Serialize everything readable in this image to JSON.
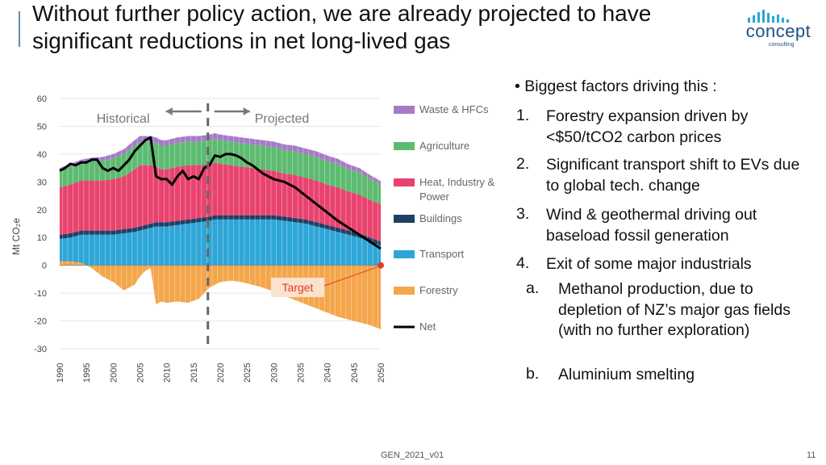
{
  "slide": {
    "title": "Without further policy action, we are already projected to have significant reductions in net long-lived gas",
    "footer": "GEN_2021_v01",
    "page_number": "11"
  },
  "logo": {
    "word": "concept",
    "sub": "consulting",
    "color": "#1e4f86"
  },
  "bullets": {
    "lead": "• Biggest factors driving this :",
    "items": [
      {
        "num": "1.",
        "text": "Forestry expansion driven by <$50/tCO2 carbon prices"
      },
      {
        "num": "2.",
        "text": "Significant transport shift to EVs due to global tech. change"
      },
      {
        "num": "3.",
        "text": "Wind & geothermal driving out baseload fossil generation"
      },
      {
        "num": "4.",
        "text": "Exit of some major industrials"
      }
    ],
    "subitems": [
      {
        "num": "a.",
        "text": "Methanol production, due to depletion of NZ’s major gas fields (with no further exploration)"
      },
      {
        "num": "b.",
        "text": "Aluminium smelting"
      }
    ]
  },
  "chart_data": {
    "type": "area",
    "ylabel": "Mt CO₂e",
    "ylim": [
      -30,
      60
    ],
    "yticks": [
      60,
      50,
      40,
      30,
      20,
      10,
      0,
      -10,
      -20,
      -30
    ],
    "xlim": [
      1990,
      2050
    ],
    "xticks": [
      "1990",
      "1995",
      "2000",
      "2005",
      "2010",
      "2015",
      "2020",
      "2025",
      "2030",
      "2035",
      "2040",
      "2045",
      "2050"
    ],
    "historical_label": "Historical",
    "projected_label": "Projected",
    "divider_year": 2018,
    "annotation": {
      "text": "Target",
      "x": 2050,
      "y": 0
    },
    "x": [
      1990,
      1992,
      1994,
      1996,
      1998,
      2000,
      2002,
      2004,
      2005,
      2006,
      2007,
      2008,
      2009,
      2010,
      2012,
      2014,
      2016,
      2018,
      2019,
      2020,
      2022,
      2024,
      2026,
      2028,
      2030,
      2032,
      2034,
      2036,
      2038,
      2040,
      2042,
      2044,
      2046,
      2048,
      2050
    ],
    "series": [
      {
        "name": "Transport",
        "color": "#2ea6d8",
        "values": [
          9.5,
          10,
          11,
          11,
          11,
          11,
          11.5,
          12,
          12.5,
          13,
          13.5,
          14,
          14,
          14,
          14.5,
          15,
          15.5,
          16,
          16.5,
          16.5,
          16.5,
          16.5,
          16.5,
          16.5,
          16.5,
          16,
          15.5,
          15,
          14,
          13,
          12,
          11,
          10,
          8.5,
          7
        ]
      },
      {
        "name": "Buildings",
        "color": "#1f3f66",
        "values": [
          1.5,
          1.5,
          1.5,
          1.5,
          1.5,
          1.5,
          1.5,
          1.5,
          1.5,
          1.5,
          1.5,
          1.5,
          1.5,
          1.5,
          1.5,
          1.5,
          1.5,
          1.5,
          1.5,
          1.5,
          1.5,
          1.5,
          1.5,
          1.5,
          1.5,
          1.5,
          1.5,
          1.5,
          1.5,
          1.5,
          1.5,
          1.5,
          1.5,
          1.5,
          1.5
        ]
      },
      {
        "name": "Heat, Industry & Power",
        "color": "#e8436e",
        "values": [
          17,
          17.5,
          18,
          18,
          18,
          18.5,
          19,
          21,
          22,
          21.5,
          21,
          20,
          19,
          19,
          19.5,
          19.5,
          19,
          19,
          19,
          18.5,
          18,
          17.5,
          17,
          16.5,
          16,
          15.5,
          15.5,
          15,
          15,
          14.5,
          14.5,
          14,
          14,
          13.5,
          13.5
        ]
      },
      {
        "name": "Agriculture",
        "color": "#5dbb71",
        "values": [
          6,
          6.5,
          6.5,
          7,
          7,
          7.5,
          8,
          8.5,
          8.5,
          8.5,
          8.5,
          8.5,
          8.5,
          8.5,
          8.5,
          8.5,
          8.5,
          8.5,
          8.5,
          8.5,
          8.5,
          8.5,
          8.5,
          8.5,
          8.5,
          8.5,
          8.5,
          8.5,
          8.5,
          8.5,
          8.5,
          8,
          8,
          7.5,
          7
        ]
      },
      {
        "name": "Waste & HFCs",
        "color": "#a77ac8",
        "values": [
          1,
          1,
          1,
          1.2,
          1.5,
          1.5,
          1.8,
          2,
          2,
          2,
          2,
          2,
          2,
          2,
          2,
          2,
          2,
          2,
          2,
          2,
          2,
          2,
          2,
          2,
          2,
          2,
          2,
          2,
          2,
          2,
          1.8,
          1.8,
          1.5,
          1.5,
          1.3
        ]
      },
      {
        "name": "Forestry",
        "color": "#f4a64a",
        "values": [
          1.5,
          1.5,
          1,
          -1,
          -4,
          -6,
          -9,
          -7,
          -4,
          -2,
          -1,
          -14,
          -13,
          -13.5,
          -13,
          -13.5,
          -12,
          -8,
          -7,
          -6,
          -5.5,
          -6,
          -7,
          -8,
          -9.5,
          -11,
          -12.5,
          -14,
          -15.5,
          -17,
          -18.5,
          -19.5,
          -20.5,
          -21.5,
          -23
        ]
      }
    ],
    "net": {
      "name": "Net",
      "color": "#000000",
      "x": [
        1990,
        1991,
        1992,
        1993,
        1994,
        1995,
        1996,
        1997,
        1998,
        1999,
        2000,
        2001,
        2002,
        2003,
        2004,
        2005,
        2006,
        2007,
        2008,
        2009,
        2010,
        2011,
        2012,
        2013,
        2014,
        2015,
        2016,
        2017,
        2018,
        2019,
        2020,
        2021,
        2022,
        2023,
        2024,
        2025,
        2026,
        2028,
        2030,
        2032,
        2034,
        2036,
        2038,
        2040,
        2042,
        2044,
        2046,
        2048,
        2050
      ],
      "values": [
        34,
        35,
        36.5,
        36,
        37,
        37,
        38,
        38,
        35,
        34,
        35,
        34,
        36,
        38,
        41,
        43,
        45,
        46,
        32,
        31,
        31,
        29,
        32,
        34,
        31,
        32,
        31,
        35,
        36,
        39.5,
        39,
        40,
        40,
        39.5,
        38.5,
        37,
        36,
        33,
        31,
        30,
        28,
        25,
        22,
        19,
        16,
        13.5,
        11,
        8.5,
        6
      ]
    },
    "legend": [
      "Waste & HFCs",
      "Agriculture",
      "Heat, Industry & Power",
      "Buildings",
      "Transport",
      "Forestry",
      "Net"
    ]
  }
}
